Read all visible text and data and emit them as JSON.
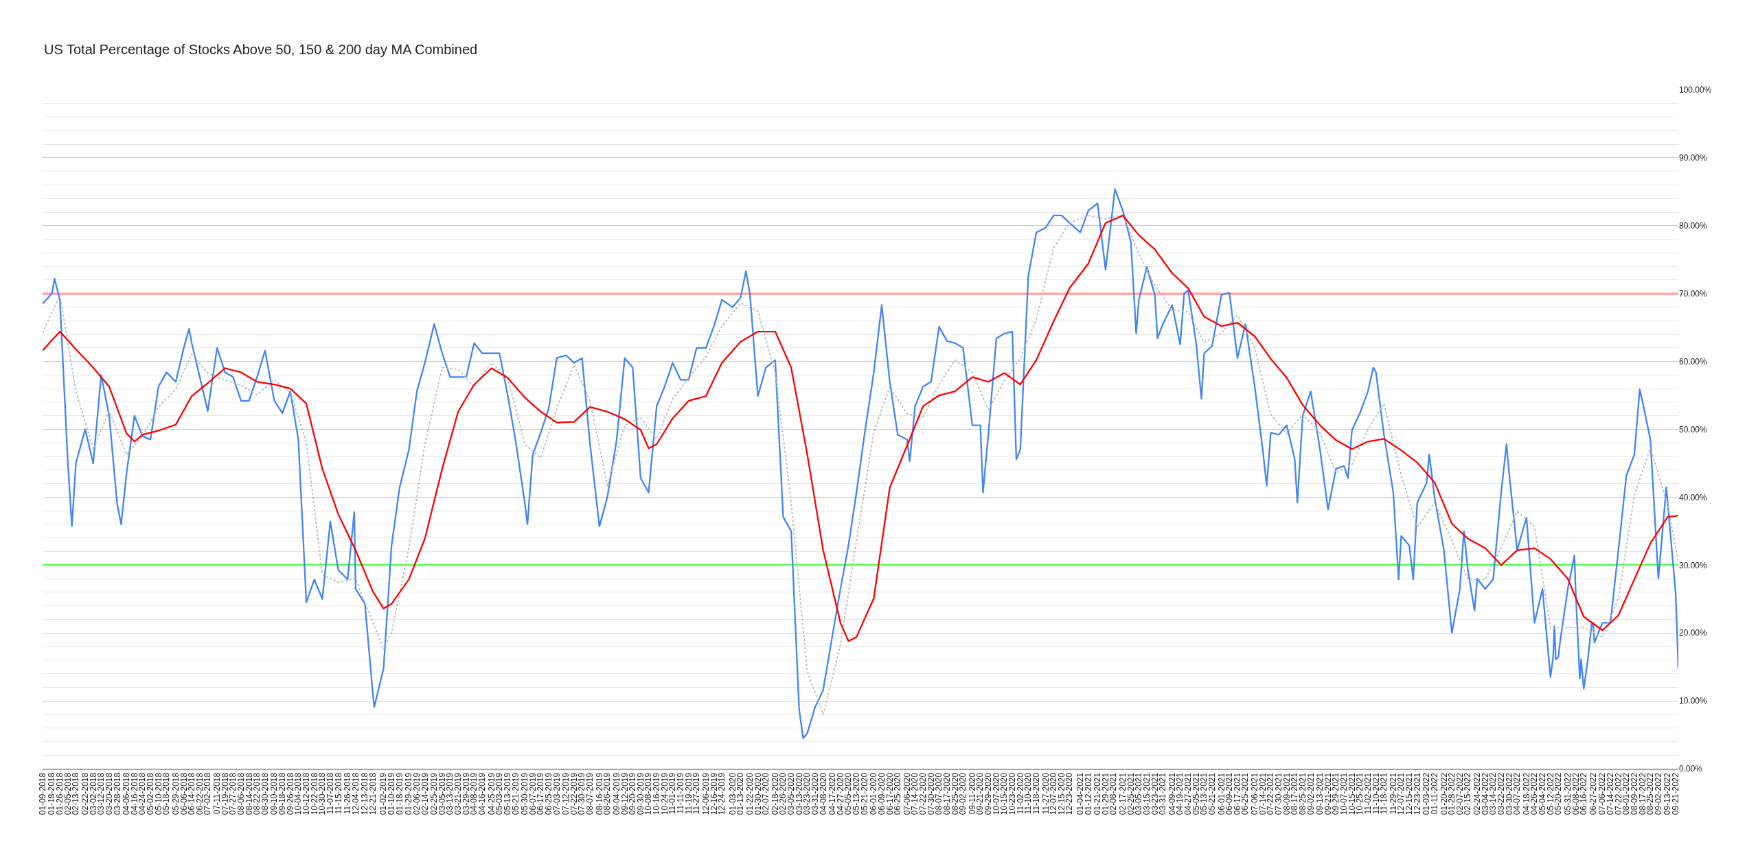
{
  "chart_data": {
    "type": "line",
    "title": "US Total Percentage of Stocks Above 50, 150 & 200 day MA Combined",
    "series": [
      {
        "color": "#4285f4",
        "line_style": "solid",
        "x": [
          "2018-01-09",
          "2018-01-18",
          "2018-01-22",
          "2018-01-26",
          "2018-02-05",
          "2018-02-08",
          "2018-02-13",
          "2018-02-22",
          "2018-03-02",
          "2018-03-12",
          "2018-03-20",
          "2018-03-28",
          "2018-04-02",
          "2018-04-06",
          "2018-04-16",
          "2018-04-24",
          "2018-05-02",
          "2018-05-10",
          "2018-05-18",
          "2018-05-29",
          "2018-06-06",
          "2018-06-12",
          "2018-06-14",
          "2018-06-22",
          "2018-07-02",
          "2018-07-11",
          "2018-07-19",
          "2018-07-27",
          "2018-08-06",
          "2018-08-14",
          "2018-08-22",
          "2018-08-30",
          "2018-09-10",
          "2018-09-18",
          "2018-09-26",
          "2018-10-04",
          "2018-10-12",
          "2018-10-22",
          "2018-10-30",
          "2018-11-07",
          "2018-11-15",
          "2018-11-26",
          "2018-12-03",
          "2018-12-04",
          "2018-12-13",
          "2018-12-21",
          "2018-12-24",
          "2019-01-02",
          "2019-01-10",
          "2019-01-18",
          "2019-01-29",
          "2019-02-06",
          "2019-02-14",
          "2019-02-25",
          "2019-03-05",
          "2019-03-13",
          "2019-03-21",
          "2019-03-29",
          "2019-04-08",
          "2019-04-16",
          "2019-04-25",
          "2019-05-03",
          "2019-05-13",
          "2019-05-21",
          "2019-05-30",
          "2019-06-03",
          "2019-06-07",
          "2019-06-17",
          "2019-06-25",
          "2019-07-03",
          "2019-07-12",
          "2019-07-22",
          "2019-07-30",
          "2019-08-07",
          "2019-08-16",
          "2019-08-26",
          "2019-09-04",
          "2019-09-12",
          "2019-09-20",
          "2019-09-30",
          "2019-10-08",
          "2019-10-16",
          "2019-10-24",
          "2019-11-01",
          "2019-11-11",
          "2019-11-19",
          "2019-11-27",
          "2019-12-06",
          "2019-12-16",
          "2019-12-24",
          "2020-01-03",
          "2020-01-13",
          "2020-01-17",
          "2020-01-22",
          "2020-01-30",
          "2020-02-07",
          "2020-02-18",
          "2020-02-26",
          "2020-03-05",
          "2020-03-13",
          "2020-03-18",
          "2020-03-23",
          "2020-03-31",
          "2020-04-08",
          "2020-04-17",
          "2020-04-27",
          "2020-05-05",
          "2020-05-13",
          "2020-05-21",
          "2020-06-01",
          "2020-06-09",
          "2020-06-17",
          "2020-06-25",
          "2020-07-06",
          "2020-07-08",
          "2020-07-14",
          "2020-07-22",
          "2020-07-30",
          "2020-08-07",
          "2020-08-17",
          "2020-08-25",
          "2020-09-02",
          "2020-09-11",
          "2020-09-21",
          "2020-09-23",
          "2020-09-29",
          "2020-10-07",
          "2020-10-15",
          "2020-10-23",
          "2020-10-28",
          "2020-11-02",
          "2020-11-10",
          "2020-11-18",
          "2020-11-27",
          "2020-12-07",
          "2020-12-15",
          "2020-12-23",
          "2021-01-04",
          "2021-01-12",
          "2021-01-21",
          "2021-01-29",
          "2021-02-08",
          "2021-02-09",
          "2021-02-17",
          "2021-02-25",
          "2021-03-03",
          "2021-03-05",
          "2021-03-15",
          "2021-03-23",
          "2021-03-25",
          "2021-03-31",
          "2021-04-09",
          "2021-04-19",
          "2021-04-22",
          "2021-04-27",
          "2021-05-05",
          "2021-05-11",
          "2021-05-13",
          "2021-05-21",
          "2021-06-01",
          "2021-06-09",
          "2021-06-17",
          "2021-06-25",
          "2021-07-06",
          "2021-07-14",
          "2021-07-19",
          "2021-07-22",
          "2021-07-30",
          "2021-08-09",
          "2021-08-17",
          "2021-08-19",
          "2021-08-25",
          "2021-09-02",
          "2021-09-13",
          "2021-09-21",
          "2021-09-29",
          "2021-10-07",
          "2021-10-12",
          "2021-10-15",
          "2021-10-25",
          "2021-11-02",
          "2021-11-08",
          "2021-11-10",
          "2021-11-18",
          "2021-11-29",
          "2021-12-03",
          "2021-12-07",
          "2021-12-15",
          "2021-12-20",
          "2021-12-23",
          "2022-01-03",
          "2022-01-05",
          "2022-01-11",
          "2022-01-20",
          "2022-01-28",
          "2022-02-07",
          "2022-02-10",
          "2022-02-15",
          "2022-02-22",
          "2022-02-24",
          "2022-03-04",
          "2022-03-14",
          "2022-03-22",
          "2022-03-28",
          "2022-03-30",
          "2022-04-07",
          "2022-04-18",
          "2022-04-26",
          "2022-05-04",
          "2022-05-12",
          "2022-05-16",
          "2022-05-17",
          "2022-05-18",
          "2022-05-20",
          "2022-05-23",
          "2022-05-31",
          "2022-06-07",
          "2022-06-08",
          "2022-06-13",
          "2022-06-14",
          "2022-06-16",
          "2022-06-21",
          "2022-06-24",
          "2022-06-27",
          "2022-06-28",
          "2022-07-06",
          "2022-07-14",
          "2022-07-22",
          "2022-08-01",
          "2022-08-09",
          "2022-08-15",
          "2022-08-17",
          "2022-08-25",
          "2022-09-02",
          "2022-09-12",
          "2022-09-13",
          "2022-09-21",
          "2022-09-23"
        ],
        "values": [
          68.5,
          70,
          72.2,
          69,
          45,
          35.7,
          45,
          50,
          45,
          58,
          52,
          39,
          36,
          43.5,
          52,
          49,
          48.5,
          56.3,
          58.4,
          57,
          62,
          64.8,
          62.7,
          57.7,
          52.7,
          62,
          58.4,
          57.7,
          54.2,
          54.2,
          57.7,
          61.6,
          54.2,
          52.4,
          55.6,
          48.5,
          24.5,
          27.9,
          25,
          36.4,
          29.3,
          27.9,
          37.8,
          26.5,
          24.3,
          10.9,
          9.1,
          14.8,
          32.9,
          41.4,
          47,
          55.6,
          59.8,
          65.5,
          61.2,
          57.7,
          57.7,
          57.7,
          62.7,
          61.2,
          61.2,
          61.2,
          55.2,
          48.5,
          39.2,
          36,
          46.3,
          49.5,
          53.1,
          60.5,
          60.9,
          59.8,
          60.5,
          47.8,
          35.7,
          40,
          48.5,
          60.5,
          59.1,
          42.8,
          40.7,
          53.4,
          56.3,
          59.8,
          57.3,
          57.3,
          62,
          62,
          65.2,
          69.1,
          68,
          69.4,
          73.3,
          70,
          54.9,
          59.1,
          60.2,
          37.1,
          35,
          8.7,
          4.5,
          5.2,
          9.1,
          11.6,
          19.7,
          26.5,
          32.9,
          40.7,
          49.2,
          58.4,
          68.3,
          57,
          49.2,
          48.5,
          45.3,
          53.4,
          56.3,
          57,
          65.1,
          63,
          62.7,
          62,
          50.6,
          50.6,
          40.7,
          49.2,
          63.4,
          64.1,
          64.4,
          45.6,
          47,
          72.6,
          79,
          79.7,
          81.5,
          81.5,
          80.4,
          79,
          82.2,
          83.3,
          73.5,
          83.6,
          85.4,
          82.2,
          77.6,
          64.1,
          69.1,
          73.9,
          69.8,
          63.4,
          65.5,
          68.3,
          62.5,
          70,
          70.5,
          62.7,
          54.5,
          61.2,
          62.3,
          69.8,
          70.1,
          60.5,
          65.5,
          56.3,
          47,
          41.7,
          49.5,
          49.2,
          50.6,
          45.6,
          39.2,
          52,
          55.6,
          47,
          38.2,
          44.2,
          44.6,
          42.8,
          49.9,
          52.4,
          55.6,
          59.1,
          58.4,
          49.2,
          40.7,
          27.9,
          34.3,
          32.9,
          27.9,
          39.2,
          42.1,
          46.3,
          40,
          32.2,
          20,
          26.5,
          35,
          29.3,
          23.3,
          28,
          26.5,
          27.9,
          40.7,
          47.8,
          43.5,
          32.2,
          37,
          21.5,
          26.5,
          13.5,
          16.4,
          21,
          16.1,
          16.5,
          18.4,
          26.5,
          31.4,
          25.8,
          13.3,
          16.1,
          11.8,
          16,
          21.4,
          21.5,
          18.6,
          21.5,
          21.5,
          32.2,
          43.2,
          46.3,
          55.9,
          54.2,
          48.5,
          28,
          41.5,
          39.2,
          25.8,
          14.8
        ]
      },
      {
        "color": "#b7b7b7",
        "line_style": "dotted",
        "x": [
          "2018-01-09",
          "2018-01-26",
          "2018-02-13",
          "2018-03-02",
          "2018-03-20",
          "2018-04-06",
          "2018-04-24",
          "2018-05-10",
          "2018-05-29",
          "2018-06-14",
          "2018-07-02",
          "2018-07-19",
          "2018-08-06",
          "2018-08-22",
          "2018-09-10",
          "2018-09-26",
          "2018-10-12",
          "2018-10-30",
          "2018-11-15",
          "2018-12-04",
          "2018-12-21",
          "2019-01-02",
          "2019-01-10",
          "2019-01-29",
          "2019-02-14",
          "2019-03-05",
          "2019-03-21",
          "2019-04-08",
          "2019-04-25",
          "2019-05-13",
          "2019-05-30",
          "2019-06-17",
          "2019-07-03",
          "2019-07-22",
          "2019-08-07",
          "2019-08-26",
          "2019-09-12",
          "2019-09-30",
          "2019-10-16",
          "2019-11-01",
          "2019-11-19",
          "2019-12-06",
          "2019-12-24",
          "2020-01-13",
          "2020-01-30",
          "2020-02-18",
          "2020-03-05",
          "2020-03-23",
          "2020-04-08",
          "2020-04-27",
          "2020-05-13",
          "2020-06-01",
          "2020-06-17",
          "2020-07-06",
          "2020-07-22",
          "2020-08-07",
          "2020-08-25",
          "2020-09-11",
          "2020-09-29",
          "2020-10-15",
          "2020-11-02",
          "2020-11-18",
          "2020-12-07",
          "2020-12-23",
          "2021-01-12",
          "2021-01-29",
          "2021-02-17",
          "2021-03-05",
          "2021-03-23",
          "2021-04-09",
          "2021-04-27",
          "2021-05-13",
          "2021-06-01",
          "2021-06-17",
          "2021-07-06",
          "2021-07-22",
          "2021-08-09",
          "2021-08-25",
          "2021-09-13",
          "2021-09-29",
          "2021-10-15",
          "2021-11-02",
          "2021-11-18",
          "2021-12-07",
          "2021-12-23",
          "2022-01-11",
          "2022-01-28",
          "2022-02-15",
          "2022-03-04",
          "2022-03-22",
          "2022-04-07",
          "2022-04-26",
          "2022-05-12",
          "2022-05-31",
          "2022-06-16",
          "2022-07-06",
          "2022-07-22",
          "2022-08-09",
          "2022-08-25",
          "2022-09-13",
          "2022-09-23"
        ],
        "values": [
          64.2,
          69.8,
          55.6,
          47.1,
          52.7,
          46.3,
          49,
          53.3,
          55.9,
          61.1,
          58.3,
          57.2,
          56.5,
          55.1,
          57.3,
          55.4,
          48.1,
          28.6,
          27.5,
          28,
          21.5,
          17.6,
          20.1,
          32.5,
          47.8,
          59.1,
          58.8,
          56.3,
          59.8,
          57.7,
          47.8,
          45.8,
          53.1,
          59.5,
          54.2,
          41.7,
          50.6,
          51.7,
          48.5,
          54.5,
          57.6,
          60.7,
          65.2,
          68.6,
          67.4,
          58.4,
          39.2,
          14.4,
          8,
          18.3,
          33.6,
          49.5,
          56.3,
          52.3,
          51.8,
          56.6,
          60.2,
          58.4,
          52.9,
          57.1,
          60.5,
          66.2,
          76.7,
          80.4,
          81.5,
          81,
          81.6,
          75.9,
          71.2,
          67.6,
          67.3,
          62.8,
          64.2,
          66.8,
          62,
          52.2,
          49.4,
          52.2,
          49.5,
          43.6,
          44.8,
          50,
          53.8,
          43.2,
          35.6,
          39.2,
          33.6,
          27.9,
          27.9,
          32.6,
          37.9,
          35.7,
          20.8,
          20.8,
          20.8,
          19.4,
          25.1,
          40.3,
          47.3,
          38.9,
          30.4
        ]
      },
      {
        "color": "#ff0000",
        "line_style": "solid",
        "x": [
          "2018-01-09",
          "2018-01-26",
          "2018-02-13",
          "2018-03-02",
          "2018-03-20",
          "2018-04-06",
          "2018-04-16",
          "2018-04-24",
          "2018-05-10",
          "2018-05-29",
          "2018-06-14",
          "2018-07-02",
          "2018-07-19",
          "2018-08-06",
          "2018-08-22",
          "2018-09-10",
          "2018-09-26",
          "2018-10-12",
          "2018-10-30",
          "2018-11-15",
          "2018-12-04",
          "2018-12-21",
          "2019-01-02",
          "2019-01-10",
          "2019-01-29",
          "2019-02-14",
          "2019-03-05",
          "2019-03-21",
          "2019-04-08",
          "2019-04-25",
          "2019-05-13",
          "2019-05-30",
          "2019-06-17",
          "2019-07-03",
          "2019-07-22",
          "2019-08-07",
          "2019-08-26",
          "2019-09-12",
          "2019-09-30",
          "2019-10-08",
          "2019-10-16",
          "2019-11-01",
          "2019-11-19",
          "2019-12-06",
          "2019-12-24",
          "2020-01-13",
          "2020-01-30",
          "2020-02-18",
          "2020-03-05",
          "2020-03-23",
          "2020-04-08",
          "2020-04-27",
          "2020-05-05",
          "2020-05-13",
          "2020-06-01",
          "2020-06-17",
          "2020-07-06",
          "2020-07-22",
          "2020-08-07",
          "2020-08-25",
          "2020-09-11",
          "2020-09-29",
          "2020-10-15",
          "2020-11-02",
          "2020-11-18",
          "2020-12-07",
          "2020-12-23",
          "2021-01-12",
          "2021-01-29",
          "2021-02-17",
          "2021-03-05",
          "2021-03-23",
          "2021-04-09",
          "2021-04-27",
          "2021-05-13",
          "2021-06-01",
          "2021-06-17",
          "2021-07-06",
          "2021-07-22",
          "2021-08-09",
          "2021-08-25",
          "2021-09-13",
          "2021-09-29",
          "2021-10-15",
          "2021-11-02",
          "2021-11-18",
          "2021-12-07",
          "2021-12-23",
          "2022-01-11",
          "2022-01-28",
          "2022-02-15",
          "2022-03-04",
          "2022-03-22",
          "2022-04-07",
          "2022-04-26",
          "2022-05-12",
          "2022-05-31",
          "2022-06-16",
          "2022-07-06",
          "2022-07-22",
          "2022-08-09",
          "2022-08-25",
          "2022-09-13",
          "2022-09-23"
        ],
        "values": [
          61.6,
          64.4,
          61.8,
          59.1,
          56.3,
          49.4,
          48.2,
          49.2,
          49.8,
          50.7,
          54.9,
          56.8,
          59,
          58.4,
          57,
          56.6,
          56,
          53.8,
          44.2,
          37.5,
          32.2,
          26.1,
          23.6,
          24.3,
          27.9,
          33.9,
          44.2,
          52.6,
          56.6,
          59,
          57.6,
          54.7,
          52.6,
          51,
          51.1,
          53.3,
          52.6,
          51.5,
          49.9,
          47.2,
          47.8,
          51.6,
          54.2,
          54.9,
          59.8,
          62.9,
          64.4,
          64.4,
          59.1,
          46.4,
          32.2,
          21.5,
          18.8,
          19.4,
          25.1,
          41.4,
          47.6,
          53.4,
          55,
          55.6,
          57.7,
          57,
          58.3,
          56.6,
          60.2,
          65.9,
          70.8,
          74.4,
          80.4,
          81.5,
          78.6,
          76.5,
          73,
          70.8,
          66.6,
          65.2,
          65.7,
          63.7,
          60.4,
          57.6,
          53.6,
          50.6,
          48.4,
          47.1,
          48.2,
          48.6,
          46.9,
          45.1,
          42.2,
          36.1,
          33.9,
          32.5,
          30,
          32.2,
          32.5,
          30.9,
          28,
          22.4,
          20.4,
          22.6,
          27.9,
          33.2,
          37.1,
          37.3
        ]
      }
    ],
    "xlim": [
      "2018-01-09",
      "2022-09-23"
    ],
    "xticks": [
      {
        "value": "2018-01-09",
        "label": "01-09-2018"
      },
      {
        "value": "2018-01-18",
        "label": "01-18-2018"
      },
      {
        "value": "2018-01-26",
        "label": "01-26-2018"
      },
      {
        "value": "2018-02-05",
        "label": "02-05-2018"
      },
      {
        "value": "2018-02-13",
        "label": "02-13-2018"
      },
      {
        "value": "2018-02-22",
        "label": "02-22-2018"
      },
      {
        "value": "2018-03-02",
        "label": "03-02-2018"
      },
      {
        "value": "2018-03-12",
        "label": "03-12-2018"
      },
      {
        "value": "2018-03-20",
        "label": "03-20-2018"
      },
      {
        "value": "2018-03-28",
        "label": "03-28-2018"
      },
      {
        "value": "2018-04-06",
        "label": "04-06-2018"
      },
      {
        "value": "2018-04-16",
        "label": "04-16-2018"
      },
      {
        "value": "2018-04-24",
        "label": "04-24-2018"
      },
      {
        "value": "2018-05-02",
        "label": "05-02-2018"
      },
      {
        "value": "2018-05-10",
        "label": "05-10-2018"
      },
      {
        "value": "2018-05-18",
        "label": "05-18-2018"
      },
      {
        "value": "2018-05-29",
        "label": "05-29-2018"
      },
      {
        "value": "2018-06-06",
        "label": "06-06-2018"
      },
      {
        "value": "2018-06-14",
        "label": "06-14-2018"
      },
      {
        "value": "2018-06-22",
        "label": "06-22-2018"
      },
      {
        "value": "2018-07-02",
        "label": "07-02-2018"
      },
      {
        "value": "2018-07-11",
        "label": "07-11-2018"
      },
      {
        "value": "2018-07-19",
        "label": "07-19-2018"
      },
      {
        "value": "2018-07-27",
        "label": "07-27-2018"
      },
      {
        "value": "2018-08-06",
        "label": "08-06-2018"
      },
      {
        "value": "2018-08-14",
        "label": "08-14-2018"
      },
      {
        "value": "2018-08-22",
        "label": "08-22-2018"
      },
      {
        "value": "2018-08-30",
        "label": "08-30-2018"
      },
      {
        "value": "2018-09-10",
        "label": "09-10-2018"
      },
      {
        "value": "2018-09-18",
        "label": "09-18-2018"
      },
      {
        "value": "2018-09-26",
        "label": "09-26-2018"
      },
      {
        "value": "2018-10-04",
        "label": "10-04-2018"
      },
      {
        "value": "2018-10-12",
        "label": "10-12-2018"
      },
      {
        "value": "2018-10-22",
        "label": "10-22-2018"
      },
      {
        "value": "2018-10-30",
        "label": "10-30-2018"
      },
      {
        "value": "2018-11-07",
        "label": "11-07-2018"
      },
      {
        "value": "2018-11-15",
        "label": "11-15-2018"
      },
      {
        "value": "2018-11-26",
        "label": "11-26-2018"
      },
      {
        "value": "2018-12-04",
        "label": "12-04-2018"
      },
      {
        "value": "2018-12-13",
        "label": "12-13-2018"
      },
      {
        "value": "2018-12-21",
        "label": "12-21-2018"
      },
      {
        "value": "2019-01-02",
        "label": "01-02-2019"
      },
      {
        "value": "2019-01-10",
        "label": "01-10-2019"
      },
      {
        "value": "2019-01-18",
        "label": "01-18-2019"
      },
      {
        "value": "2019-01-29",
        "label": "01-29-2019"
      },
      {
        "value": "2019-02-06",
        "label": "02-06-2019"
      },
      {
        "value": "2019-02-14",
        "label": "02-14-2019"
      },
      {
        "value": "2019-02-25",
        "label": "02-25-2019"
      },
      {
        "value": "2019-03-05",
        "label": "03-05-2019"
      },
      {
        "value": "2019-03-13",
        "label": "03-13-2019"
      },
      {
        "value": "2019-03-21",
        "label": "03-21-2019"
      },
      {
        "value": "2019-03-29",
        "label": "03-29-2019"
      },
      {
        "value": "2019-04-08",
        "label": "04-08-2019"
      },
      {
        "value": "2019-04-16",
        "label": "04-16-2019"
      },
      {
        "value": "2019-04-25",
        "label": "04-25-2019"
      },
      {
        "value": "2019-05-03",
        "label": "05-03-2019"
      },
      {
        "value": "2019-05-13",
        "label": "05-13-2019"
      },
      {
        "value": "2019-05-21",
        "label": "05-21-2019"
      },
      {
        "value": "2019-05-30",
        "label": "05-30-2019"
      },
      {
        "value": "2019-06-07",
        "label": "06-07-2019"
      },
      {
        "value": "2019-06-17",
        "label": "06-17-2019"
      },
      {
        "value": "2019-06-25",
        "label": "06-25-2019"
      },
      {
        "value": "2019-07-03",
        "label": "07-03-2019"
      },
      {
        "value": "2019-07-12",
        "label": "07-12-2019"
      },
      {
        "value": "2019-07-22",
        "label": "07-22-2019"
      },
      {
        "value": "2019-07-30",
        "label": "07-30-2019"
      },
      {
        "value": "2019-08-07",
        "label": "08-07-2019"
      },
      {
        "value": "2019-08-16",
        "label": "08-16-2019"
      },
      {
        "value": "2019-08-26",
        "label": "08-26-2019"
      },
      {
        "value": "2019-09-04",
        "label": "09-04-2019"
      },
      {
        "value": "2019-09-12",
        "label": "09-12-2019"
      },
      {
        "value": "2019-09-20",
        "label": "09-20-2019"
      },
      {
        "value": "2019-09-30",
        "label": "09-30-2019"
      },
      {
        "value": "2019-10-08",
        "label": "10-08-2019"
      },
      {
        "value": "2019-10-16",
        "label": "10-16-2019"
      },
      {
        "value": "2019-10-24",
        "label": "10-24-2019"
      },
      {
        "value": "2019-11-01",
        "label": "11-01-2019"
      },
      {
        "value": "2019-11-11",
        "label": "11-11-2019"
      },
      {
        "value": "2019-11-19",
        "label": "11-19-2019"
      },
      {
        "value": "2019-11-27",
        "label": "11-27-2019"
      },
      {
        "value": "2019-12-06",
        "label": "12-06-2019"
      },
      {
        "value": "2019-12-16",
        "label": "12-16-2019"
      },
      {
        "value": "2019-12-24",
        "label": "12-24-2019"
      },
      {
        "value": "2020-01-03",
        "label": "01-03-2020"
      },
      {
        "value": "2020-01-13",
        "label": "01-13-2020"
      },
      {
        "value": "2020-01-22",
        "label": "01-22-2020"
      },
      {
        "value": "2020-01-30",
        "label": "01-30-2020"
      },
      {
        "value": "2020-02-07",
        "label": "02-07-2020"
      },
      {
        "value": "2020-02-18",
        "label": "02-18-2020"
      },
      {
        "value": "2020-02-26",
        "label": "02-26-2020"
      },
      {
        "value": "2020-03-05",
        "label": "03-05-2020"
      },
      {
        "value": "2020-03-13",
        "label": "03-13-2020"
      },
      {
        "value": "2020-03-23",
        "label": "03-23-2020"
      },
      {
        "value": "2020-03-31",
        "label": "03-31-2020"
      },
      {
        "value": "2020-04-08",
        "label": "04-08-2020"
      },
      {
        "value": "2020-04-17",
        "label": "04-17-2020"
      },
      {
        "value": "2020-04-27",
        "label": "04-27-2020"
      },
      {
        "value": "2020-05-05",
        "label": "05-05-2020"
      },
      {
        "value": "2020-05-13",
        "label": "05-13-2020"
      },
      {
        "value": "2020-05-21",
        "label": "05-21-2020"
      },
      {
        "value": "2020-06-01",
        "label": "06-01-2020"
      },
      {
        "value": "2020-06-09",
        "label": "06-09-2020"
      },
      {
        "value": "2020-06-17",
        "label": "06-17-2020"
      },
      {
        "value": "2020-06-25",
        "label": "06-25-2020"
      },
      {
        "value": "2020-07-06",
        "label": "07-06-2020"
      },
      {
        "value": "2020-07-14",
        "label": "07-14-2020"
      },
      {
        "value": "2020-07-22",
        "label": "07-22-2020"
      },
      {
        "value": "2020-07-30",
        "label": "07-30-2020"
      },
      {
        "value": "2020-08-07",
        "label": "08-07-2020"
      },
      {
        "value": "2020-08-17",
        "label": "08-17-2020"
      },
      {
        "value": "2020-08-25",
        "label": "08-25-2020"
      },
      {
        "value": "2020-09-02",
        "label": "09-02-2020"
      },
      {
        "value": "2020-09-11",
        "label": "09-11-2020"
      },
      {
        "value": "2020-09-21",
        "label": "09-21-2020"
      },
      {
        "value": "2020-09-29",
        "label": "09-29-2020"
      },
      {
        "value": "2020-10-07",
        "label": "10-07-2020"
      },
      {
        "value": "2020-10-15",
        "label": "10-15-2020"
      },
      {
        "value": "2020-10-23",
        "label": "10-23-2020"
      },
      {
        "value": "2020-11-02",
        "label": "11-02-2020"
      },
      {
        "value": "2020-11-10",
        "label": "11-10-2020"
      },
      {
        "value": "2020-11-18",
        "label": "11-18-2020"
      },
      {
        "value": "2020-11-27",
        "label": "11-27-2020"
      },
      {
        "value": "2020-12-07",
        "label": "12-07-2020"
      },
      {
        "value": "2020-12-15",
        "label": "12-15-2020"
      },
      {
        "value": "2020-12-23",
        "label": "12-23-2020"
      },
      {
        "value": "2021-01-04",
        "label": "01-04-2021"
      },
      {
        "value": "2021-01-12",
        "label": "01-12-2021"
      },
      {
        "value": "2021-01-21",
        "label": "01-21-2021"
      },
      {
        "value": "2021-01-29",
        "label": "01-29-2021"
      },
      {
        "value": "2021-02-08",
        "label": "02-08-2021"
      },
      {
        "value": "2021-02-17",
        "label": "02-17-2021"
      },
      {
        "value": "2021-02-25",
        "label": "02-25-2021"
      },
      {
        "value": "2021-03-05",
        "label": "03-05-2021"
      },
      {
        "value": "2021-03-15",
        "label": "03-15-2021"
      },
      {
        "value": "2021-03-23",
        "label": "03-23-2021"
      },
      {
        "value": "2021-03-31",
        "label": "03-31-2021"
      },
      {
        "value": "2021-04-09",
        "label": "04-09-2021"
      },
      {
        "value": "2021-04-19",
        "label": "04-19-2021"
      },
      {
        "value": "2021-04-27",
        "label": "04-27-2021"
      },
      {
        "value": "2021-05-05",
        "label": "05-05-2021"
      },
      {
        "value": "2021-05-13",
        "label": "05-13-2021"
      },
      {
        "value": "2021-05-21",
        "label": "05-21-2021"
      },
      {
        "value": "2021-06-01",
        "label": "06-01-2021"
      },
      {
        "value": "2021-06-09",
        "label": "06-09-2021"
      },
      {
        "value": "2021-06-17",
        "label": "06-17-2021"
      },
      {
        "value": "2021-06-25",
        "label": "06-25-2021"
      },
      {
        "value": "2021-07-06",
        "label": "07-06-2021"
      },
      {
        "value": "2021-07-14",
        "label": "07-14-2021"
      },
      {
        "value": "2021-07-22",
        "label": "07-22-2021"
      },
      {
        "value": "2021-07-30",
        "label": "07-30-2021"
      },
      {
        "value": "2021-08-09",
        "label": "08-09-2021"
      },
      {
        "value": "2021-08-17",
        "label": "08-17-2021"
      },
      {
        "value": "2021-08-25",
        "label": "08-25-2021"
      },
      {
        "value": "2021-09-02",
        "label": "09-02-2021"
      },
      {
        "value": "2021-09-13",
        "label": "09-13-2021"
      },
      {
        "value": "2021-09-21",
        "label": "09-21-2021"
      },
      {
        "value": "2021-09-29",
        "label": "09-29-2021"
      },
      {
        "value": "2021-10-07",
        "label": "10-07-2021"
      },
      {
        "value": "2021-10-15",
        "label": "10-15-2021"
      },
      {
        "value": "2021-10-25",
        "label": "10-25-2021"
      },
      {
        "value": "2021-11-02",
        "label": "11-02-2021"
      },
      {
        "value": "2021-11-10",
        "label": "11-10-2021"
      },
      {
        "value": "2021-11-18",
        "label": "11-18-2021"
      },
      {
        "value": "2021-11-29",
        "label": "11-29-2021"
      },
      {
        "value": "2021-12-07",
        "label": "12-07-2021"
      },
      {
        "value": "2021-12-15",
        "label": "12-15-2021"
      },
      {
        "value": "2021-12-23",
        "label": "12-23-2021"
      },
      {
        "value": "2022-01-03",
        "label": "01-03-2022"
      },
      {
        "value": "2022-01-11",
        "label": "01-11-2022"
      },
      {
        "value": "2022-01-20",
        "label": "01-20-2022"
      },
      {
        "value": "2022-01-28",
        "label": "01-28-2022"
      },
      {
        "value": "2022-02-07",
        "label": "02-07-2022"
      },
      {
        "value": "2022-02-15",
        "label": "02-15-2022"
      },
      {
        "value": "2022-02-24",
        "label": "02-24-2022"
      },
      {
        "value": "2022-03-04",
        "label": "03-04-2022"
      },
      {
        "value": "2022-03-14",
        "label": "03-14-2022"
      },
      {
        "value": "2022-03-22",
        "label": "03-22-2022"
      },
      {
        "value": "2022-03-30",
        "label": "03-30-2022"
      },
      {
        "value": "2022-04-07",
        "label": "04-07-2022"
      },
      {
        "value": "2022-04-18",
        "label": "04-18-2022"
      },
      {
        "value": "2022-04-26",
        "label": "04-26-2022"
      },
      {
        "value": "2022-05-04",
        "label": "05-04-2022"
      },
      {
        "value": "2022-05-12",
        "label": "05-12-2022"
      },
      {
        "value": "2022-05-20",
        "label": "05-20-2022"
      },
      {
        "value": "2022-05-31",
        "label": "05-31-2022"
      },
      {
        "value": "2022-06-08",
        "label": "06-08-2022"
      },
      {
        "value": "2022-06-16",
        "label": "06-16-2022"
      },
      {
        "value": "2022-06-27",
        "label": "06-27-2022"
      },
      {
        "value": "2022-07-06",
        "label": "07-06-2022"
      },
      {
        "value": "2022-07-14",
        "label": "07-14-2022"
      },
      {
        "value": "2022-07-22",
        "label": "07-22-2022"
      },
      {
        "value": "2022-08-01",
        "label": "08-01-2022"
      },
      {
        "value": "2022-08-09",
        "label": "08-09-2022"
      },
      {
        "value": "2022-08-17",
        "label": "08-17-2022"
      },
      {
        "value": "2022-08-25",
        "label": "08-25-2022"
      },
      {
        "value": "2022-09-02",
        "label": "09-02-2022"
      },
      {
        "value": "2022-09-13",
        "label": "09-13-2022"
      },
      {
        "value": "2022-09-21",
        "label": "09-21-2022"
      }
    ],
    "ylim": [
      0,
      100
    ],
    "yticks": [
      {
        "value": 0,
        "label": "0.00%"
      },
      {
        "value": 2,
        "label": null
      },
      {
        "value": 4,
        "label": null
      },
      {
        "value": 6,
        "label": null
      },
      {
        "value": 8,
        "label": null
      },
      {
        "value": 10,
        "label": "10.00%"
      },
      {
        "value": 12,
        "label": null
      },
      {
        "value": 14,
        "label": null
      },
      {
        "value": 16,
        "label": null
      },
      {
        "value": 18,
        "label": null
      },
      {
        "value": 20,
        "label": "20.00%"
      },
      {
        "value": 22,
        "label": null
      },
      {
        "value": 24,
        "label": null
      },
      {
        "value": 26,
        "label": null
      },
      {
        "value": 28,
        "label": null
      },
      {
        "value": 30,
        "label": "30.00%"
      },
      {
        "value": 32,
        "label": null
      },
      {
        "value": 34,
        "label": null
      },
      {
        "value": 36,
        "label": null
      },
      {
        "value": 38,
        "label": null
      },
      {
        "value": 40,
        "label": "40.00%"
      },
      {
        "value": 42,
        "label": null
      },
      {
        "value": 44,
        "label": null
      },
      {
        "value": 46,
        "label": null
      },
      {
        "value": 48,
        "label": null
      },
      {
        "value": 50,
        "label": "50.00%"
      },
      {
        "value": 52,
        "label": null
      },
      {
        "value": 54,
        "label": null
      },
      {
        "value": 56,
        "label": null
      },
      {
        "value": 58,
        "label": null
      },
      {
        "value": 60,
        "label": "60.00%"
      },
      {
        "value": 62,
        "label": null
      },
      {
        "value": 64,
        "label": null
      },
      {
        "value": 66,
        "label": null
      },
      {
        "value": 68,
        "label": null
      },
      {
        "value": 70,
        "label": "70.00%"
      },
      {
        "value": 72,
        "label": null
      },
      {
        "value": 74,
        "label": null
      },
      {
        "value": 76,
        "label": null
      },
      {
        "value": 78,
        "label": null
      },
      {
        "value": 80,
        "label": "80.00%"
      },
      {
        "value": 82,
        "label": null
      },
      {
        "value": 84,
        "label": null
      },
      {
        "value": 86,
        "label": null
      },
      {
        "value": 88,
        "label": null
      },
      {
        "value": 90,
        "label": "90.00%"
      },
      {
        "value": 92,
        "label": null
      },
      {
        "value": 94,
        "label": null
      },
      {
        "value": 96,
        "label": null
      },
      {
        "value": 98,
        "label": null
      },
      {
        "value": 100,
        "label": "100.00%"
      }
    ],
    "ref_lines": [
      {
        "axis": "y",
        "value": 70,
        "color": "#ff0000"
      },
      {
        "axis": "y",
        "value": 30,
        "color": "#00ff00"
      }
    ],
    "grid": "y"
  }
}
